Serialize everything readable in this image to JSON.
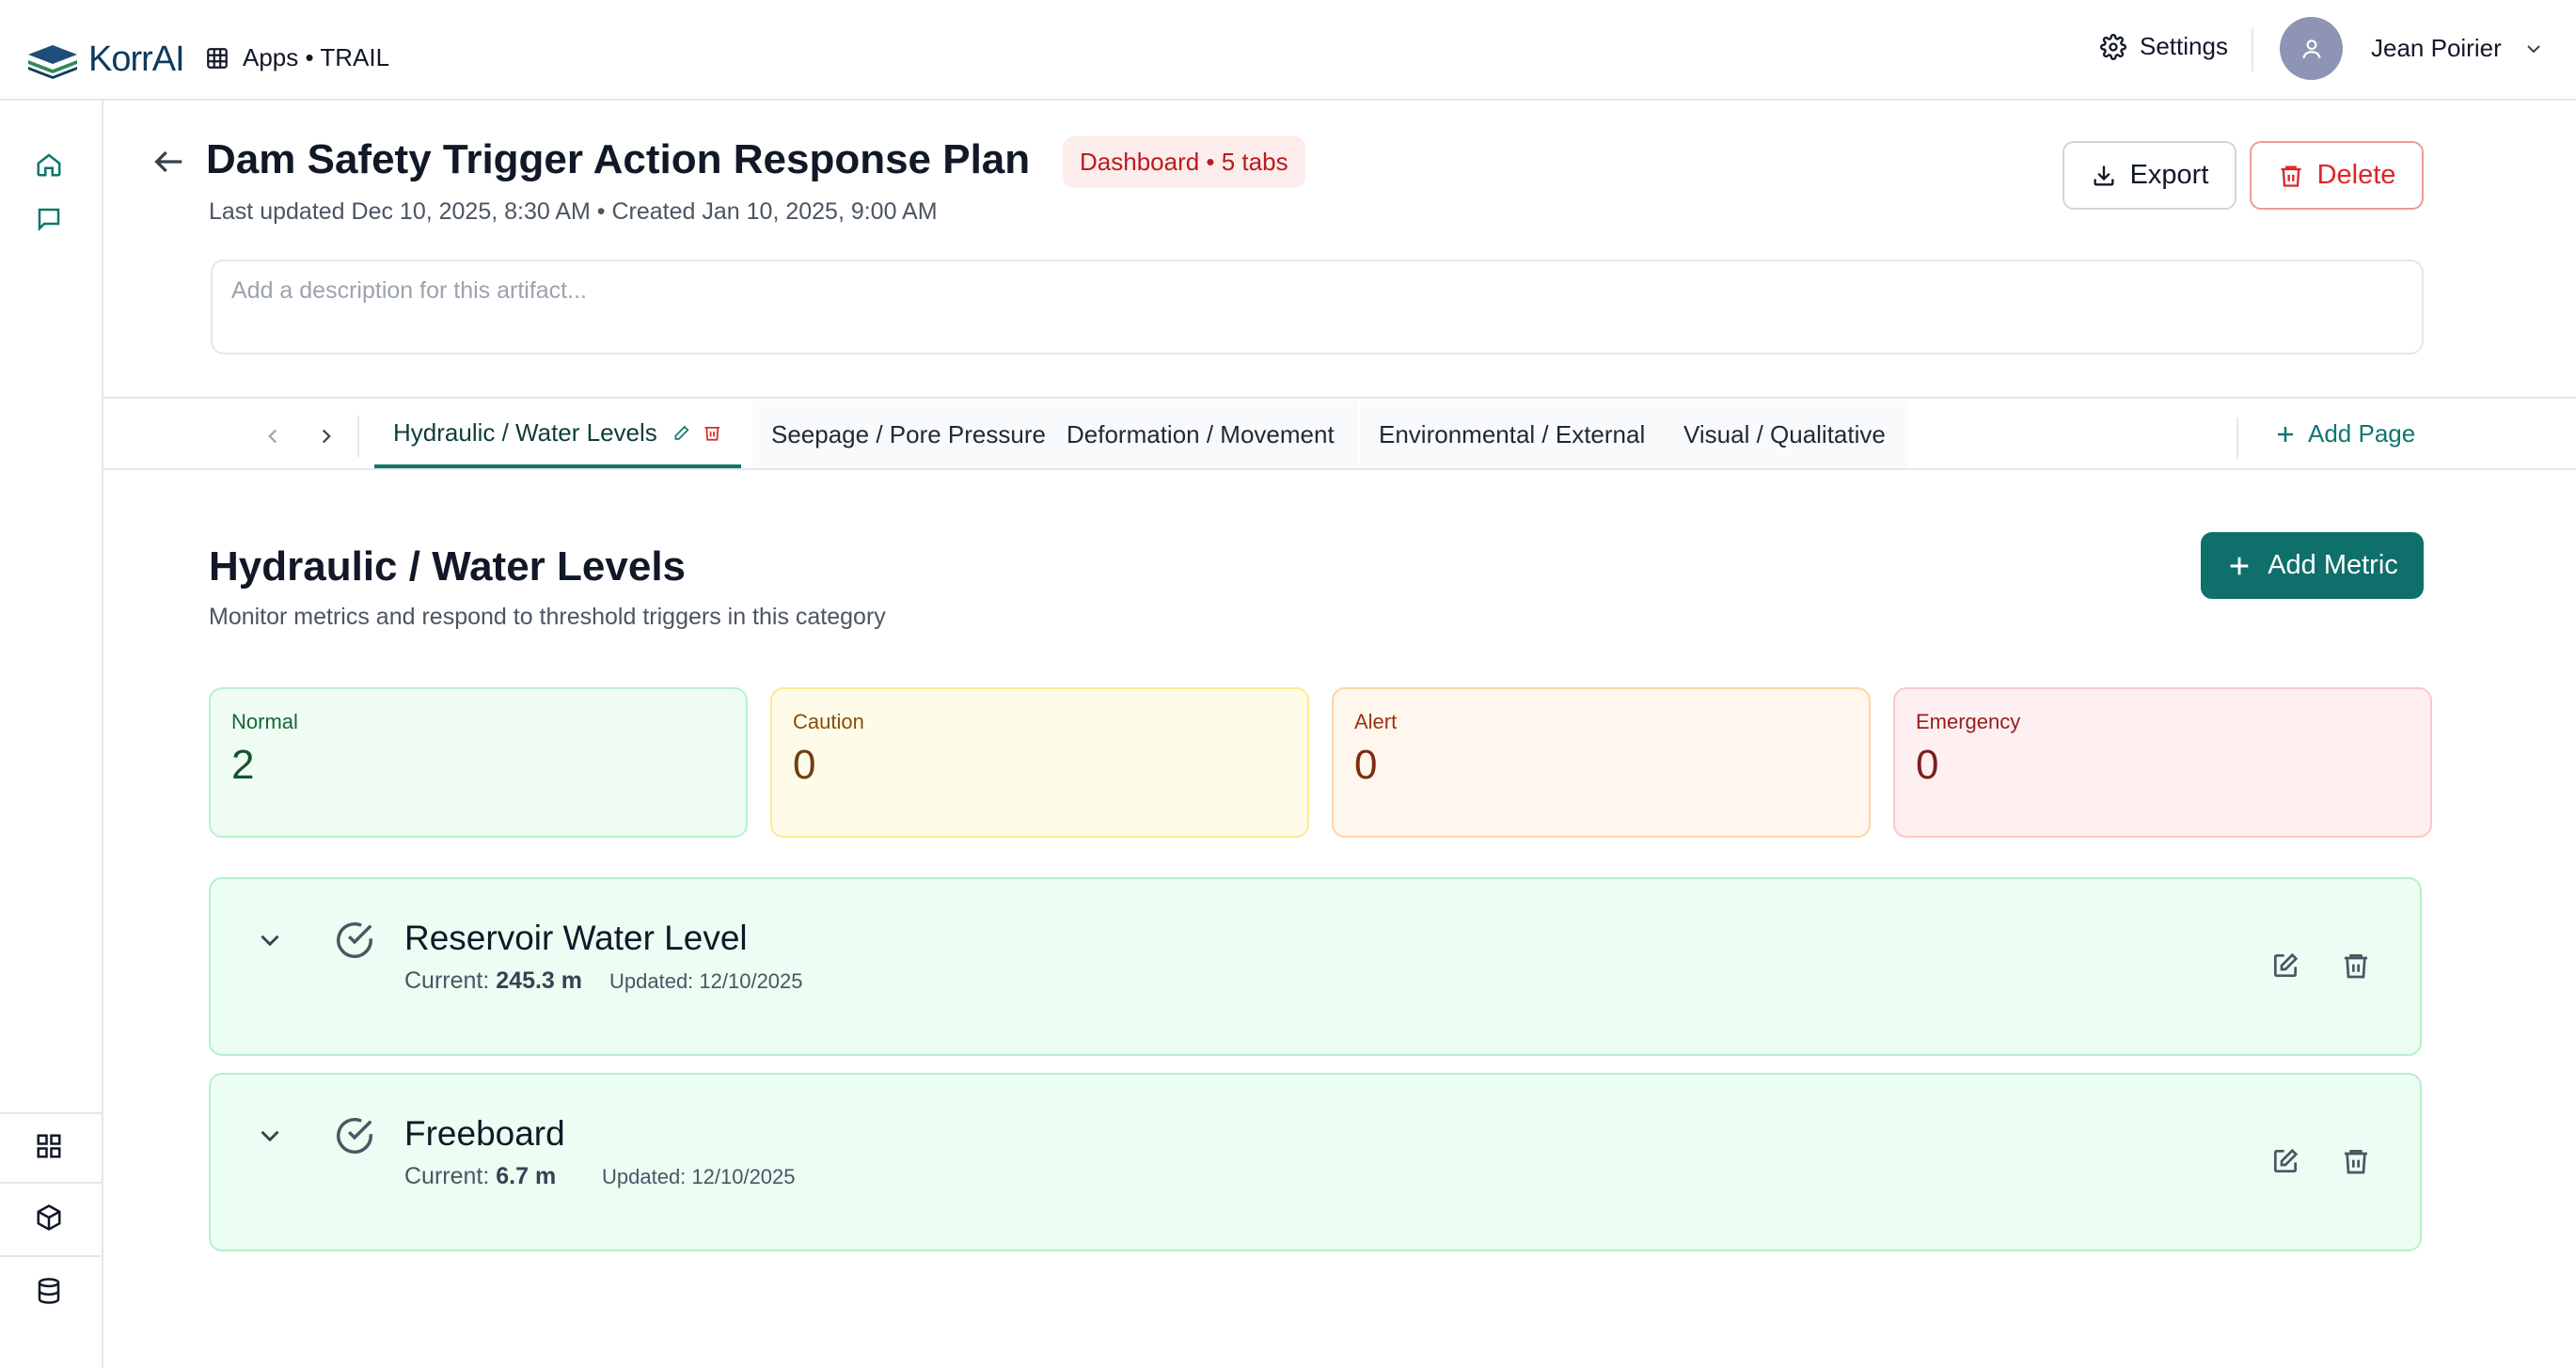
{
  "app": {
    "logo_text": "KorrAI",
    "apps_label": "Apps • TRAIL"
  },
  "header": {
    "settings_label": "Settings",
    "user_name": "Jean Poirier"
  },
  "artifact": {
    "title": "Dam Safety Trigger Action Response Plan",
    "badge": "Dashboard • 5 tabs",
    "meta": "Last updated Dec 10, 2025, 8:30 AM • Created Jan 10, 2025, 9:00 AM",
    "export_label": "Export",
    "delete_label": "Delete",
    "description_placeholder": "Add a description for this artifact..."
  },
  "tabs": [
    {
      "label": "Hydraulic / Water Levels",
      "active": true
    },
    {
      "label": "Seepage / Pore Pressure",
      "active": false
    },
    {
      "label": "Deformation / Movement",
      "active": false
    },
    {
      "label": "Environmental / External",
      "active": false
    },
    {
      "label": "Visual / Qualitative",
      "active": false
    }
  ],
  "add_page_label": "Add Page",
  "section": {
    "title": "Hydraulic / Water Levels",
    "subtitle": "Monitor metrics and respond to threshold triggers in this category",
    "add_metric_label": "Add Metric"
  },
  "stats": [
    {
      "label": "Normal",
      "value": "2"
    },
    {
      "label": "Caution",
      "value": "0"
    },
    {
      "label": "Alert",
      "value": "0"
    },
    {
      "label": "Emergency",
      "value": "0"
    }
  ],
  "metrics": [
    {
      "name": "Reservoir Water Level",
      "current_prefix": "Current: ",
      "current_value": "245.3 m",
      "updated": "Updated: 12/10/2025"
    },
    {
      "name": "Freeboard",
      "current_prefix": "Current: ",
      "current_value": "6.7 m",
      "updated": "Updated: 12/10/2025"
    }
  ],
  "colors": {
    "primary": "#0f6f6b",
    "danger": "#dc2626",
    "normal_bg": "#ecfdf3"
  },
  "icons": [
    "grid-icon",
    "gear-icon",
    "user-icon",
    "chevron-down-icon",
    "home-icon",
    "chat-icon",
    "apps-icon",
    "cube-icon",
    "database-icon",
    "arrow-left-icon",
    "download-icon",
    "trash-icon",
    "chevron-left-icon",
    "chevron-right-icon",
    "pencil-icon",
    "plus-icon",
    "check-circle-icon",
    "edit-icon"
  ]
}
